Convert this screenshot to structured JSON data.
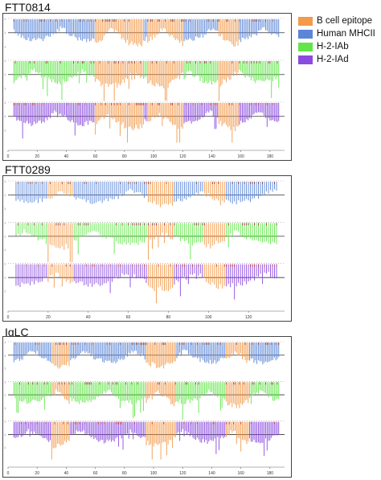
{
  "legend": {
    "items": [
      {
        "label": "B cell epitope",
        "color": "#f39a4b"
      },
      {
        "label": "Human MHCII",
        "color": "#5b86d8"
      },
      {
        "label": "H-2-IAb",
        "color": "#62e64a"
      },
      {
        "label": "H-2-IAd",
        "color": "#8a4be0"
      }
    ]
  },
  "chart_data": [
    {
      "type": "bar",
      "title": "FTT0814",
      "x_ticks": [
        0,
        20,
        40,
        60,
        80,
        100,
        120,
        140,
        160,
        180
      ],
      "xlim": [
        0,
        190
      ],
      "tracks": [
        "Human MHCII",
        "H-2-IAb",
        "H-2-IAd"
      ],
      "series": [
        {
          "name": "B cell epitope",
          "values": [
            [
              96,
              112
            ],
            [
              98,
              114
            ],
            [
              100,
              117
            ],
            [
              102,
              118
            ],
            [
              104,
              120
            ],
            [
              106,
              116
            ],
            [
              108,
              112
            ],
            [
              110,
              104
            ],
            [
              112,
              95
            ],
            [
              60,
              90
            ],
            [
              62,
              91
            ],
            [
              64,
              92
            ],
            [
              66,
              93
            ],
            [
              145,
              155
            ],
            [
              147,
              157
            ],
            [
              150,
              158
            ],
            [
              153,
              156
            ]
          ]
        }
      ]
    },
    {
      "type": "bar",
      "title": "FTT0289",
      "x_ticks": [
        0,
        20,
        40,
        60,
        80,
        100,
        120
      ],
      "xlim": [
        0,
        138
      ],
      "tracks": [
        "Human MHCII",
        "H-2-IAb",
        "H-2-IAd"
      ],
      "series": [
        {
          "name": "B cell epitope",
          "values": [
            [
              20,
              32
            ],
            [
              70,
              82
            ],
            [
              98,
              108
            ]
          ]
        }
      ]
    },
    {
      "type": "bar",
      "title": "IgLC",
      "x_ticks": [
        0,
        20,
        40,
        60,
        80,
        100,
        120,
        140,
        160,
        180
      ],
      "xlim": [
        0,
        190
      ],
      "tracks": [
        "Human MHCII",
        "H-2-IAb",
        "H-2-IAd"
      ],
      "series": [
        {
          "name": "B cell epitope",
          "values": [
            [
              30,
              42
            ],
            [
              95,
              115
            ],
            [
              150,
              165
            ]
          ]
        }
      ]
    }
  ]
}
